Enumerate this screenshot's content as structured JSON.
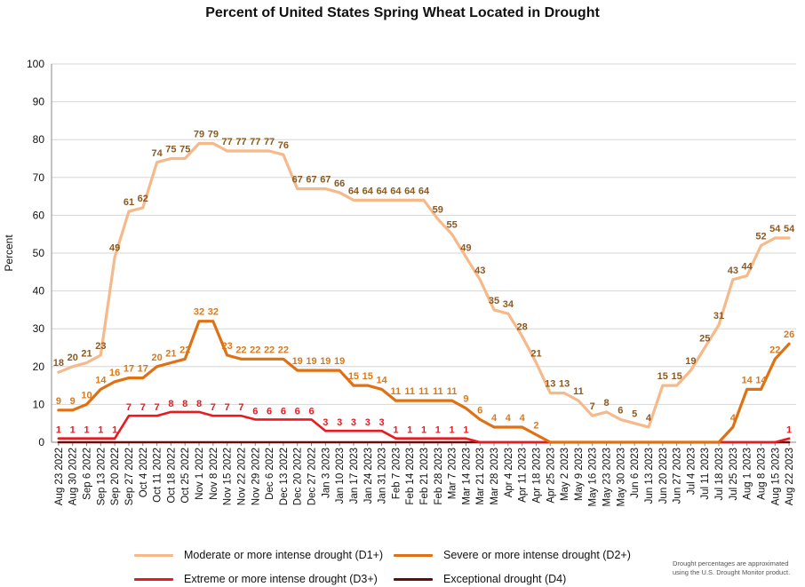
{
  "chart_data": {
    "type": "line",
    "title": "Percent of United States Spring Wheat Located in Drought",
    "ylabel": "Percent",
    "xlabel": "",
    "ylim": [
      0,
      100
    ],
    "yticks": [
      0,
      10,
      20,
      30,
      40,
      50,
      60,
      70,
      80,
      90,
      100
    ],
    "grid": true,
    "legend_position": "bottom",
    "x": [
      "Aug 23 2022",
      "Aug 30 2022",
      "Sep 6 2022",
      "Sep 13 2022",
      "Sep 20 2022",
      "Sep 27 2022",
      "Oct 4 2022",
      "Oct 11 2022",
      "Oct 18 2022",
      "Oct 25 2022",
      "Nov 1 2022",
      "Nov 8 2022",
      "Nov 15 2022",
      "Nov 22 2022",
      "Nov 29 2022",
      "Dec 6 2022",
      "Dec 13 2022",
      "Dec 20 2022",
      "Dec 27 2022",
      "Jan 3 2023",
      "Jan 10 2023",
      "Jan 17 2023",
      "Jan 24 2023",
      "Jan 31 2023",
      "Feb 7 2023",
      "Feb 14 2023",
      "Feb 21 2023",
      "Feb 28 2023",
      "Mar 7 2023",
      "Mar 14 2023",
      "Mar 21 2023",
      "Mar 28 2023",
      "Apr 4 2023",
      "Apr 11 2023",
      "Apr 18 2023",
      "Apr 25 2023",
      "May 2 2023",
      "May 9 2023",
      "May 16 2023",
      "May 23 2023",
      "May 30 2023",
      "Jun 6 2023",
      "Jun 13 2023",
      "Jun 20 2023",
      "Jun 27 2023",
      "Jul 4 2023",
      "Jul 11 2023",
      "Jul 18 2023",
      "Jul 25 2023",
      "Aug 1 2023",
      "Aug 8 2023",
      "Aug 15 2023",
      "Aug 22 2023"
    ],
    "series": [
      {
        "name": "Moderate or more intense drought (D1+)",
        "color": "#f5b98a",
        "values": [
          18.5,
          20,
          21,
          23,
          49,
          61,
          62,
          74,
          75,
          75,
          79,
          79,
          77,
          77,
          77,
          77,
          76,
          67,
          67,
          67,
          66,
          64,
          64,
          64,
          64,
          64,
          64,
          59,
          55,
          49,
          43,
          35,
          34,
          28,
          21,
          13,
          13,
          11,
          7,
          8,
          6,
          5,
          4,
          15,
          15,
          19,
          25,
          31,
          43,
          44,
          52,
          54,
          54
        ],
        "labels": [
          "18",
          "20",
          "21",
          "23",
          "49",
          "61",
          "62",
          "74",
          "75",
          "75",
          "79",
          "79",
          "77",
          "77",
          "77",
          "77",
          "76",
          "67",
          "67",
          "67",
          "66",
          "64",
          "64",
          "64",
          "64",
          "64",
          "64",
          "59",
          "55",
          "49",
          "43",
          "35",
          "34",
          "28",
          "21",
          "13",
          "13",
          "11",
          "7",
          "8",
          "6",
          "5",
          "4",
          "15",
          "15",
          "19",
          "25",
          "31",
          "43",
          "44",
          "52",
          "54",
          "54"
        ]
      },
      {
        "name": "Severe or more intense drought (D2+)",
        "color": "#e07014",
        "values": [
          8.5,
          8.5,
          10,
          14,
          16,
          17,
          17,
          20,
          21,
          22,
          32,
          32,
          23,
          22,
          22,
          22,
          22,
          19,
          19,
          19,
          19,
          15,
          15,
          14,
          11,
          11,
          11,
          11,
          11,
          9,
          6,
          4,
          4,
          4,
          2,
          0,
          0,
          0,
          0,
          0,
          0,
          0,
          0,
          0,
          0,
          0,
          0,
          0,
          4,
          14,
          14,
          22,
          26
        ],
        "labels": [
          "9",
          "9",
          "10",
          "14",
          "16",
          "17",
          "17",
          "20",
          "21",
          "22",
          "32",
          "32",
          "23",
          "22",
          "22",
          "22",
          "22",
          "19",
          "19",
          "19",
          "19",
          "15",
          "15",
          "14",
          "11",
          "11",
          "11",
          "11",
          "11",
          "9",
          "6",
          "4",
          "4",
          "4",
          "2",
          "",
          "",
          "",
          "",
          "",
          "",
          "",
          "",
          "",
          "",
          "",
          "",
          "",
          "4",
          "14",
          "14",
          "22",
          "26"
        ]
      },
      {
        "name": "Extreme or more intense drought (D3+)",
        "color": "#e8191f",
        "values": [
          1,
          1,
          1,
          1,
          1,
          7,
          7,
          7,
          8,
          8,
          8,
          7,
          7,
          7,
          6,
          6,
          6,
          6,
          6,
          3,
          3,
          3,
          3,
          3,
          1,
          1,
          1,
          1,
          1,
          1,
          0,
          0,
          0,
          0,
          0,
          0,
          0,
          0,
          0,
          0,
          0,
          0,
          0,
          0,
          0,
          0,
          0,
          0,
          0,
          0,
          0,
          0,
          1
        ],
        "labels": [
          "1",
          "1",
          "1",
          "1",
          "1",
          "7",
          "7",
          "7",
          "8",
          "8",
          "8",
          "7",
          "7",
          "7",
          "6",
          "6",
          "6",
          "6",
          "6",
          "3",
          "3",
          "3",
          "3",
          "3",
          "1",
          "1",
          "1",
          "1",
          "1",
          "1",
          "",
          "",
          "",
          "",
          "",
          "",
          "",
          "",
          "",
          "",
          "",
          "",
          "",
          "",
          "",
          "",
          "",
          "",
          "",
          "",
          "",
          "",
          "1"
        ]
      },
      {
        "name": "Exceptional drought (D4)",
        "color": "#6b0a0a",
        "values": [
          0,
          0,
          0,
          0,
          0,
          0,
          0,
          0,
          0,
          0,
          0,
          0,
          0,
          0,
          0,
          0,
          0,
          0,
          0,
          0,
          0,
          0,
          0,
          0,
          0,
          0,
          0,
          0,
          0,
          0,
          0,
          0,
          0,
          0,
          0,
          0,
          0,
          0,
          0,
          0,
          0,
          0,
          0,
          0,
          0,
          0,
          0,
          0,
          0,
          0,
          0,
          0,
          0
        ],
        "labels": []
      }
    ]
  },
  "note": "Drought percentages are approximated using the U.S. Drought Monitor product."
}
